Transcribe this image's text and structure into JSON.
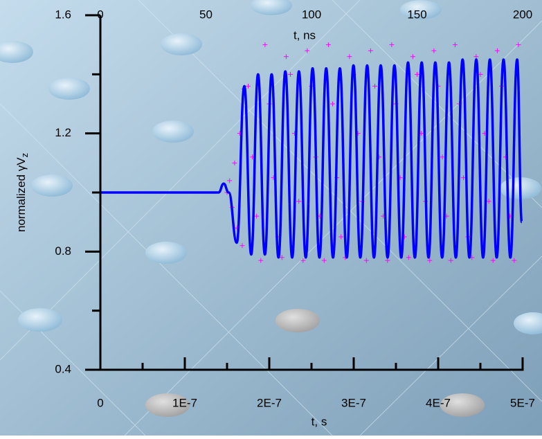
{
  "chart_data": {
    "type": "line",
    "xlabel": "t, s",
    "x2label": "t, ns",
    "ylabel": {
      "text": "normalized  γV",
      "subscript": "z"
    },
    "xlim": [
      0,
      5e-07
    ],
    "xticks": [
      0,
      {
        "value": 1e-07,
        "label": "1E-7"
      },
      {
        "value": 2e-07,
        "label": "2E-7"
      },
      {
        "value": 3e-07,
        "label": "3E-7"
      },
      {
        "value": 4e-07,
        "label": "4E-7"
      },
      {
        "value": 5e-07,
        "label": "5E-7"
      }
    ],
    "xminorticks": [
      5e-08,
      1.5e-07,
      2.5e-07,
      3.5e-07,
      4.5e-07
    ],
    "x2lim": [
      0,
      200
    ],
    "x2ticks": [
      0,
      50,
      100,
      150,
      200
    ],
    "ylim": [
      0.4,
      1.6
    ],
    "yticks": [
      0.4,
      0.8,
      1.2,
      1.6
    ],
    "yminorticks": [
      0.6,
      1.0,
      1.4
    ],
    "series": [
      {
        "type": "scatter",
        "marker": "+",
        "color": "#ff00ff",
        "x": [
          1.5e-07,
          1.53e-07,
          1.56e-07,
          1.59e-07,
          1.62e-07,
          1.65e-07,
          1.68e-07,
          1.7e-07,
          1.75e-07,
          1.8e-07,
          1.85e-07,
          1.9e-07,
          1.95e-07,
          2e-07,
          2.05e-07,
          2.1e-07,
          2.15e-07,
          2.2e-07,
          2.25e-07,
          2.3e-07,
          2.35e-07,
          2.4e-07,
          2.45e-07,
          2.5e-07,
          2.55e-07,
          2.6e-07,
          2.65e-07,
          2.7e-07,
          2.75e-07,
          2.8e-07,
          2.85e-07,
          2.9e-07,
          2.95e-07,
          3e-07,
          3.05e-07,
          3.1e-07,
          3.15e-07,
          3.2e-07,
          3.25e-07,
          3.3e-07,
          3.35e-07,
          3.4e-07,
          3.45e-07,
          3.5e-07,
          3.55e-07,
          3.6e-07,
          3.65e-07,
          3.7e-07,
          3.75e-07,
          3.8e-07,
          3.85e-07,
          3.9e-07,
          3.95e-07,
          4e-07,
          4.05e-07,
          4.1e-07,
          4.15e-07,
          4.2e-07,
          4.25e-07,
          4.3e-07,
          4.35e-07,
          4.4e-07,
          4.45e-07,
          4.5e-07,
          4.55e-07,
          4.6e-07,
          4.65e-07,
          4.7e-07,
          4.75e-07,
          4.8e-07,
          4.85e-07,
          4.9e-07,
          4.95e-07
        ],
        "values": [
          1.0,
          1.04,
          0.95,
          1.1,
          0.88,
          1.2,
          0.82,
          1.35,
          1.36,
          1.12,
          0.92,
          0.77,
          1.5,
          1.3,
          1.05,
          0.85,
          0.78,
          1.46,
          1.4,
          1.2,
          0.97,
          0.77,
          1.48,
          1.36,
          1.12,
          0.92,
          0.77,
          1.5,
          1.3,
          1.05,
          0.85,
          0.78,
          1.46,
          1.4,
          1.2,
          0.97,
          0.77,
          1.48,
          1.36,
          1.12,
          0.92,
          0.77,
          1.5,
          1.3,
          1.05,
          0.85,
          0.78,
          1.46,
          1.4,
          1.2,
          0.97,
          0.77,
          1.48,
          1.36,
          1.12,
          0.92,
          0.77,
          1.5,
          1.3,
          1.05,
          0.85,
          0.78,
          1.46,
          1.4,
          1.2,
          0.97,
          0.77,
          1.48,
          1.36,
          1.12,
          0.92,
          0.77,
          1.5
        ]
      },
      {
        "type": "line",
        "color": "#0000ff",
        "x": [
          0,
          1.4e-07,
          1.46e-07,
          1.52e-07,
          1.615e-07,
          1.705e-07,
          1.786e-07,
          1.867e-07,
          1.948e-07,
          2.028e-07,
          2.109e-07,
          2.19e-07,
          2.271e-07,
          2.351e-07,
          2.432e-07,
          2.513e-07,
          2.594e-07,
          2.674e-07,
          2.755e-07,
          2.836e-07,
          2.917e-07,
          2.997e-07,
          3.078e-07,
          3.159e-07,
          3.24e-07,
          3.32e-07,
          3.401e-07,
          3.482e-07,
          3.563e-07,
          3.643e-07,
          3.724e-07,
          3.805e-07,
          3.886e-07,
          3.966e-07,
          4.047e-07,
          4.128e-07,
          4.209e-07,
          4.289e-07,
          4.37e-07,
          4.451e-07,
          4.532e-07,
          4.612e-07,
          4.693e-07,
          4.774e-07,
          4.855e-07,
          4.935e-07,
          4.99e-07
        ],
        "values": [
          1.0,
          1.0,
          1.03,
          1.0,
          0.83,
          1.36,
          0.79,
          1.4,
          0.79,
          1.4,
          0.78,
          1.41,
          0.78,
          1.41,
          0.78,
          1.42,
          0.78,
          1.42,
          0.78,
          1.42,
          0.78,
          1.43,
          0.78,
          1.43,
          0.78,
          1.43,
          0.78,
          1.43,
          0.78,
          1.44,
          0.78,
          1.44,
          0.78,
          1.44,
          0.78,
          1.44,
          0.78,
          1.45,
          0.78,
          1.45,
          0.78,
          1.45,
          0.78,
          1.45,
          0.78,
          1.45,
          0.9
        ]
      }
    ]
  }
}
